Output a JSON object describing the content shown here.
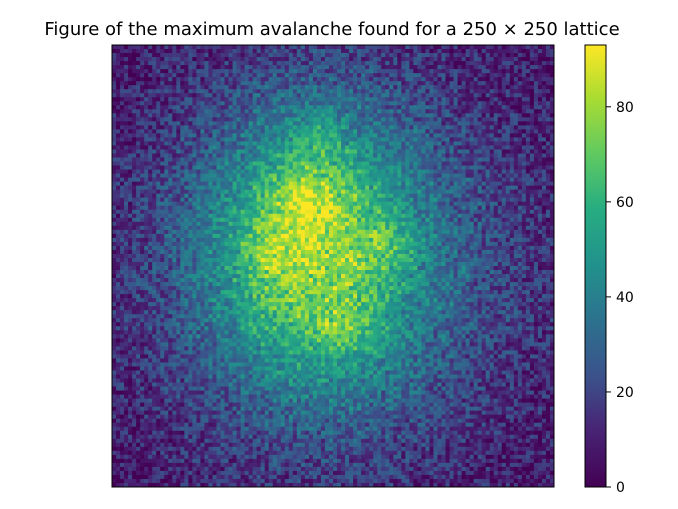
{
  "chart_data": {
    "type": "heatmap",
    "title": "Figure of the maximum avalanche found for a 250 × 250 lattice",
    "xlabel": "",
    "ylabel": "",
    "grid": false,
    "axes_ticks_visible": false,
    "lattice_size": [
      250,
      250
    ],
    "colormap": "viridis",
    "colorbar": {
      "min": 0,
      "max": 93,
      "ticks": [
        0,
        20,
        40,
        60,
        80
      ],
      "tick_labels": [
        "0",
        "20",
        "40",
        "60",
        "80"
      ],
      "placement": "right"
    },
    "value_field_description_regions": {
      "background_edges": 5,
      "outer_halo": 25,
      "middle_ring": 45,
      "core": 70,
      "hotspots_max": 93
    },
    "colors": {
      "low": "#440154",
      "mid_low": "#3b528b",
      "mid": "#21918c",
      "mid_high": "#5ec962",
      "high": "#fde725"
    }
  }
}
